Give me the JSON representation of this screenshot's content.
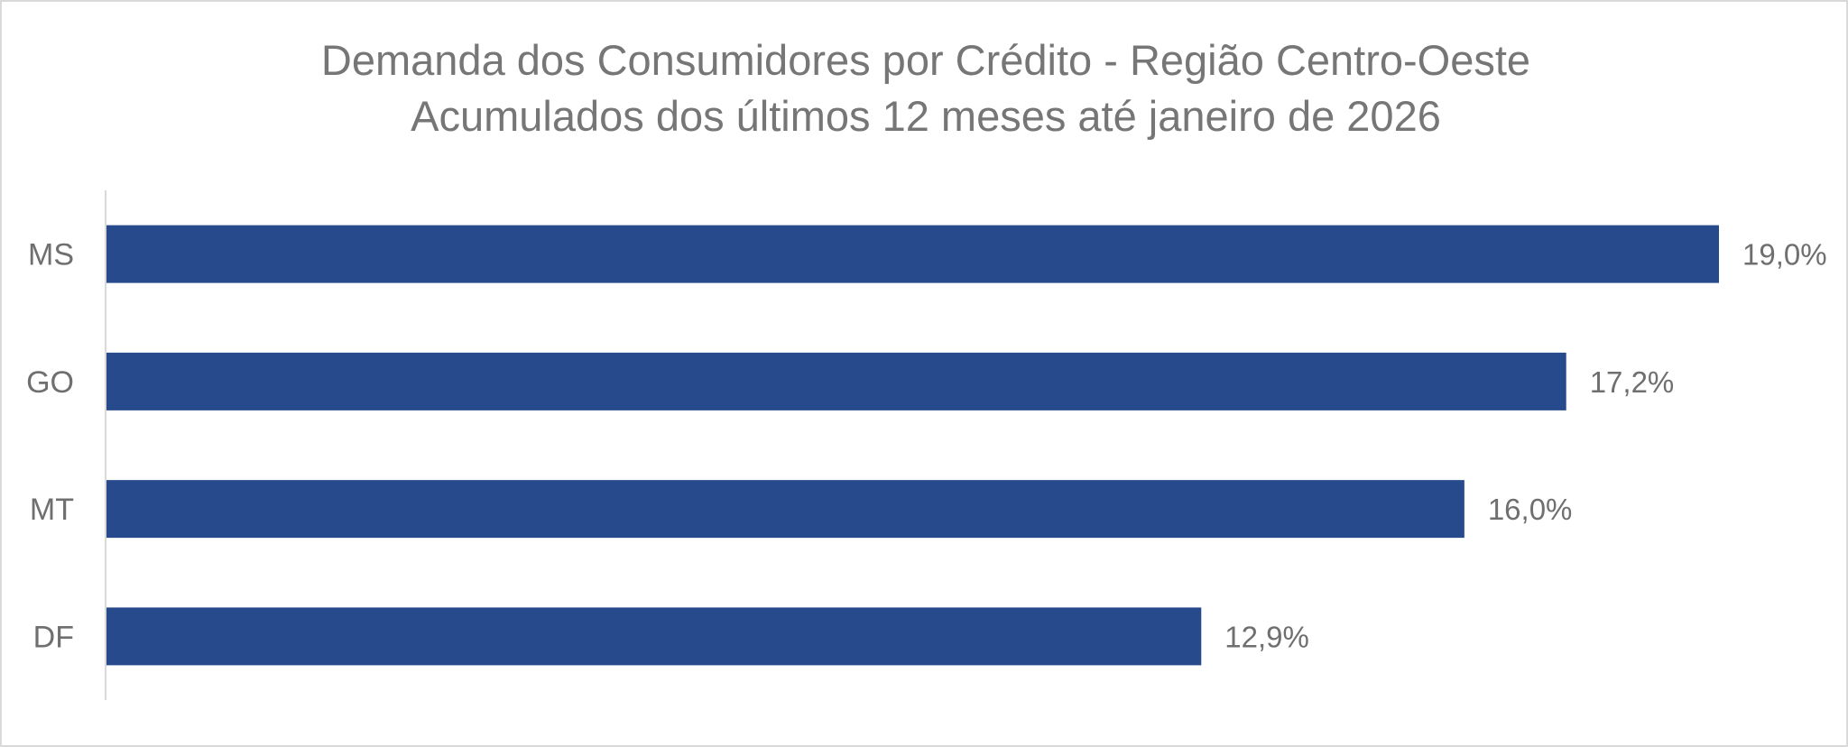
{
  "chart_data": {
    "type": "bar",
    "orientation": "horizontal",
    "title": "Demanda dos Consumidores por Crédito - Região Centro-Oeste",
    "subtitle": "Acumulados dos últimos 12 meses até janeiro de 2026",
    "categories": [
      "MS",
      "GO",
      "MT",
      "DF"
    ],
    "values": [
      19.0,
      17.2,
      16.0,
      12.9
    ],
    "data_labels": [
      "19,0%",
      "17,2%",
      "16,0%",
      "12,9%"
    ],
    "xlim": [
      0,
      19.0
    ],
    "bar_color": "#264A8C",
    "grid": false,
    "legend": "none"
  }
}
